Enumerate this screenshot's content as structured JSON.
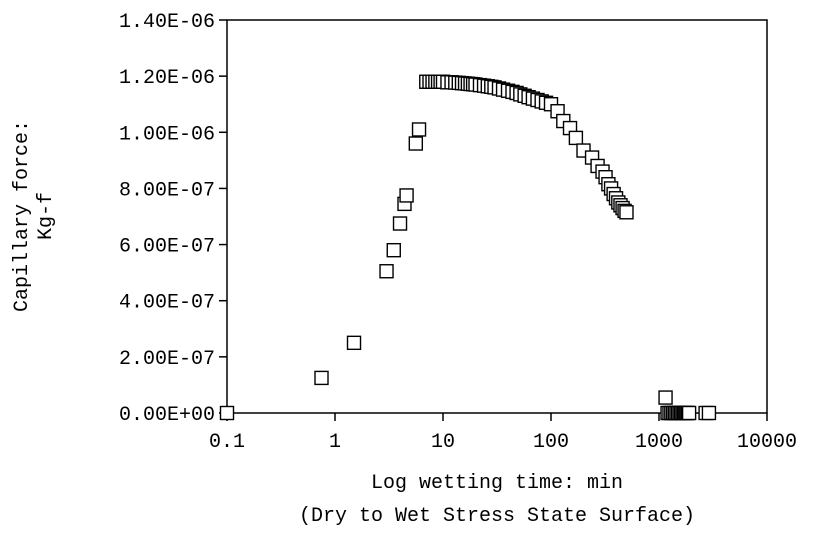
{
  "chart_data": {
    "type": "scatter",
    "title": "",
    "xlabel": "Log wetting time: min",
    "xlabel_sub": "(Dry to Wet Stress State Surface)",
    "ylabel": "Capillary force:",
    "ylabel_sub": "Kg-f",
    "x_scale": "log",
    "xlim": [
      0.1,
      10000
    ],
    "ylim": [
      0,
      1.4e-06
    ],
    "x_ticks": [
      0.1,
      1,
      10,
      100,
      1000,
      10000
    ],
    "x_tick_labels": [
      "0.1",
      "1",
      "10",
      "100",
      "1000",
      "10000"
    ],
    "y_ticks": [
      0,
      2e-07,
      4e-07,
      6e-07,
      8e-07,
      1e-06,
      1.2e-06,
      1.4e-06
    ],
    "y_tick_labels": [
      "0.00E+00",
      "2.00E-07",
      "4.00E-07",
      "6.00E-07",
      "8.00E-07",
      "1.00E-06",
      "1.20E-06",
      "1.40E-06"
    ],
    "grid": false,
    "legend": "none",
    "marker": "open-square",
    "series": [
      {
        "x": [
          0.1,
          0.75,
          1.5,
          3.0,
          3.5,
          4.0,
          4.4,
          4.6,
          5.6,
          6.0,
          7.0,
          7.5,
          8,
          8.5,
          9,
          9.5,
          10,
          11,
          12,
          13,
          14,
          15,
          16,
          17,
          18,
          19,
          20,
          22,
          24,
          26,
          28,
          30,
          33,
          36,
          40,
          44,
          48,
          52,
          57,
          62,
          68,
          75,
          82,
          90,
          100,
          115,
          130,
          150,
          170,
          200,
          240,
          270,
          300,
          320,
          340,
          360,
          380,
          400,
          420,
          440,
          460,
          480,
          500,
          1150,
          1200,
          1250,
          1300,
          1350,
          1400,
          1450,
          1500,
          1550,
          1600,
          1650,
          1700,
          1750,
          1800,
          1850,
          1900,
          2700,
          2900
        ],
        "y": [
          0,
          1.25e-07,
          2.5e-07,
          5.05e-07,
          5.8e-07,
          6.75e-07,
          7.45e-07,
          7.75e-07,
          9.6e-07,
          1.01e-06,
          1.18e-06,
          1.18e-06,
          1.18e-06,
          1.18e-06,
          1.18e-06,
          1.18e-06,
          1.18e-06,
          1.178e-06,
          1.178e-06,
          1.177e-06,
          1.176e-06,
          1.175e-06,
          1.174e-06,
          1.173e-06,
          1.172e-06,
          1.171e-06,
          1.17e-06,
          1.168e-06,
          1.166e-06,
          1.164e-06,
          1.162e-06,
          1.16e-06,
          1.156e-06,
          1.152e-06,
          1.148e-06,
          1.144e-06,
          1.14e-06,
          1.135e-06,
          1.13e-06,
          1.125e-06,
          1.12e-06,
          1.115e-06,
          1.11e-06,
          1.105e-06,
          1.1e-06,
          1.075e-06,
          1.04e-06,
          1.015e-06,
          9.8e-07,
          9.35e-07,
          9.1e-07,
          8.8e-07,
          8.6e-07,
          8.4e-07,
          8.15e-07,
          8e-07,
          7.8e-07,
          7.65e-07,
          7.5e-07,
          7.4e-07,
          7.3e-07,
          7.2e-07,
          7.15e-07,
          5.5e-08,
          0,
          0,
          0,
          0,
          0,
          0,
          0,
          0,
          0,
          0,
          0,
          0,
          0,
          0,
          0,
          0,
          0
        ]
      }
    ]
  }
}
